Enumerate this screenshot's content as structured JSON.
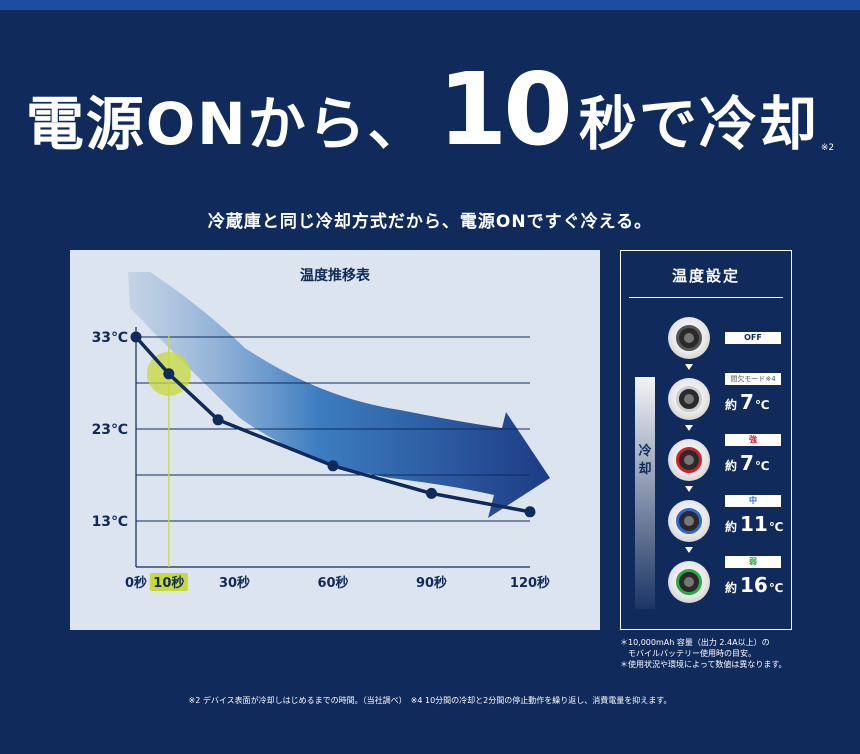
{
  "headline": {
    "prefix": "電源ONから、",
    "number": "10",
    "suffix": "秒で冷却",
    "note": "※2"
  },
  "subtitle": "冷蔵庫と同じ冷却方式だから、電源ONですぐ冷える。",
  "graph": {
    "title": "温度推移表",
    "highlight_color": "#c8d93a",
    "line_color": "#0f2a5b"
  },
  "chart_data": {
    "type": "line",
    "title": "温度推移表",
    "x": [
      0,
      10,
      25,
      60,
      90,
      120
    ],
    "y": [
      33,
      29,
      24,
      19,
      16,
      14
    ],
    "x_ticks": [
      0,
      10,
      30,
      60,
      90,
      120
    ],
    "x_tick_labels": [
      "0秒",
      "10秒",
      "30秒",
      "60秒",
      "90秒",
      "120秒"
    ],
    "y_ticks": [
      13,
      23,
      33
    ],
    "y_tick_labels": [
      "13℃",
      "23℃",
      "33℃"
    ],
    "xlim": [
      0,
      120
    ],
    "ylim": [
      8,
      33
    ],
    "highlight_x": 10,
    "grid": true
  },
  "settings": {
    "title": "温度設定",
    "cool_label": "冷却",
    "modes": [
      {
        "tag": "OFF",
        "ring_color": "#555555",
        "approx": "",
        "value": "",
        "unit": ""
      },
      {
        "tag": "間欠モード※4",
        "ring_color": "#cccccc",
        "approx": "約",
        "value": "7",
        "unit": "℃"
      },
      {
        "tag": "強",
        "ring_color": "#d0202a",
        "approx": "約",
        "value": "7",
        "unit": "℃",
        "tag_color": "#d0202a"
      },
      {
        "tag": "中",
        "ring_color": "#2f66d0",
        "approx": "約",
        "value": "11",
        "unit": "℃",
        "tag_color": "#2f66d0"
      },
      {
        "tag": "弱",
        "ring_color": "#2aa84a",
        "approx": "約",
        "value": "16",
        "unit": "℃",
        "tag_color": "#2aa84a"
      }
    ]
  },
  "notes": [
    "＊10,000mAh 容量（出力 2.4A以上）の",
    "　モバイルバッテリー使用時の目安。",
    "＊使用状況や環境によって数値は異なります。"
  ],
  "footnote": "※2 デバイス表面が冷却しはじめるまでの時間。（当社調べ）　※4 10分間の冷却と2分間の停止動作を繰り返し、消費電量を抑えます。"
}
